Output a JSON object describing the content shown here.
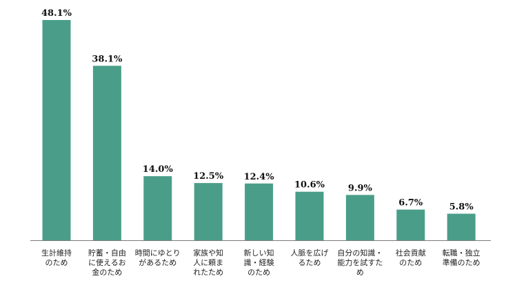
{
  "chart_data": {
    "type": "bar",
    "categories": [
      [
        "生計維持",
        "のため"
      ],
      [
        "貯蓄・自由",
        "に使えるお",
        "金のため"
      ],
      [
        "時間にゆとり",
        "があるため"
      ],
      [
        "家族や知",
        "人に頼ま",
        "れたため"
      ],
      [
        "新しい知",
        "識・経験",
        "のため"
      ],
      [
        "人脈を広げ",
        "るため"
      ],
      [
        "自分の知識・",
        "能力を試すた",
        "め"
      ],
      [
        "社会貢献",
        "のため"
      ],
      [
        "転職・独立",
        "準備のため"
      ]
    ],
    "values": [
      48.1,
      38.1,
      14.0,
      12.5,
      12.4,
      10.6,
      9.9,
      6.7,
      5.8
    ],
    "value_labels": [
      "48.1%",
      "38.1%",
      "14.0%",
      "12.5%",
      "12.4%",
      "10.6%",
      "9.9%",
      "6.7%",
      "5.8%"
    ],
    "ylim": [
      0,
      48.1
    ],
    "bar_color": "#4a9e89",
    "axis_color": "#7a7a7a",
    "grid": false,
    "legend": "none"
  }
}
